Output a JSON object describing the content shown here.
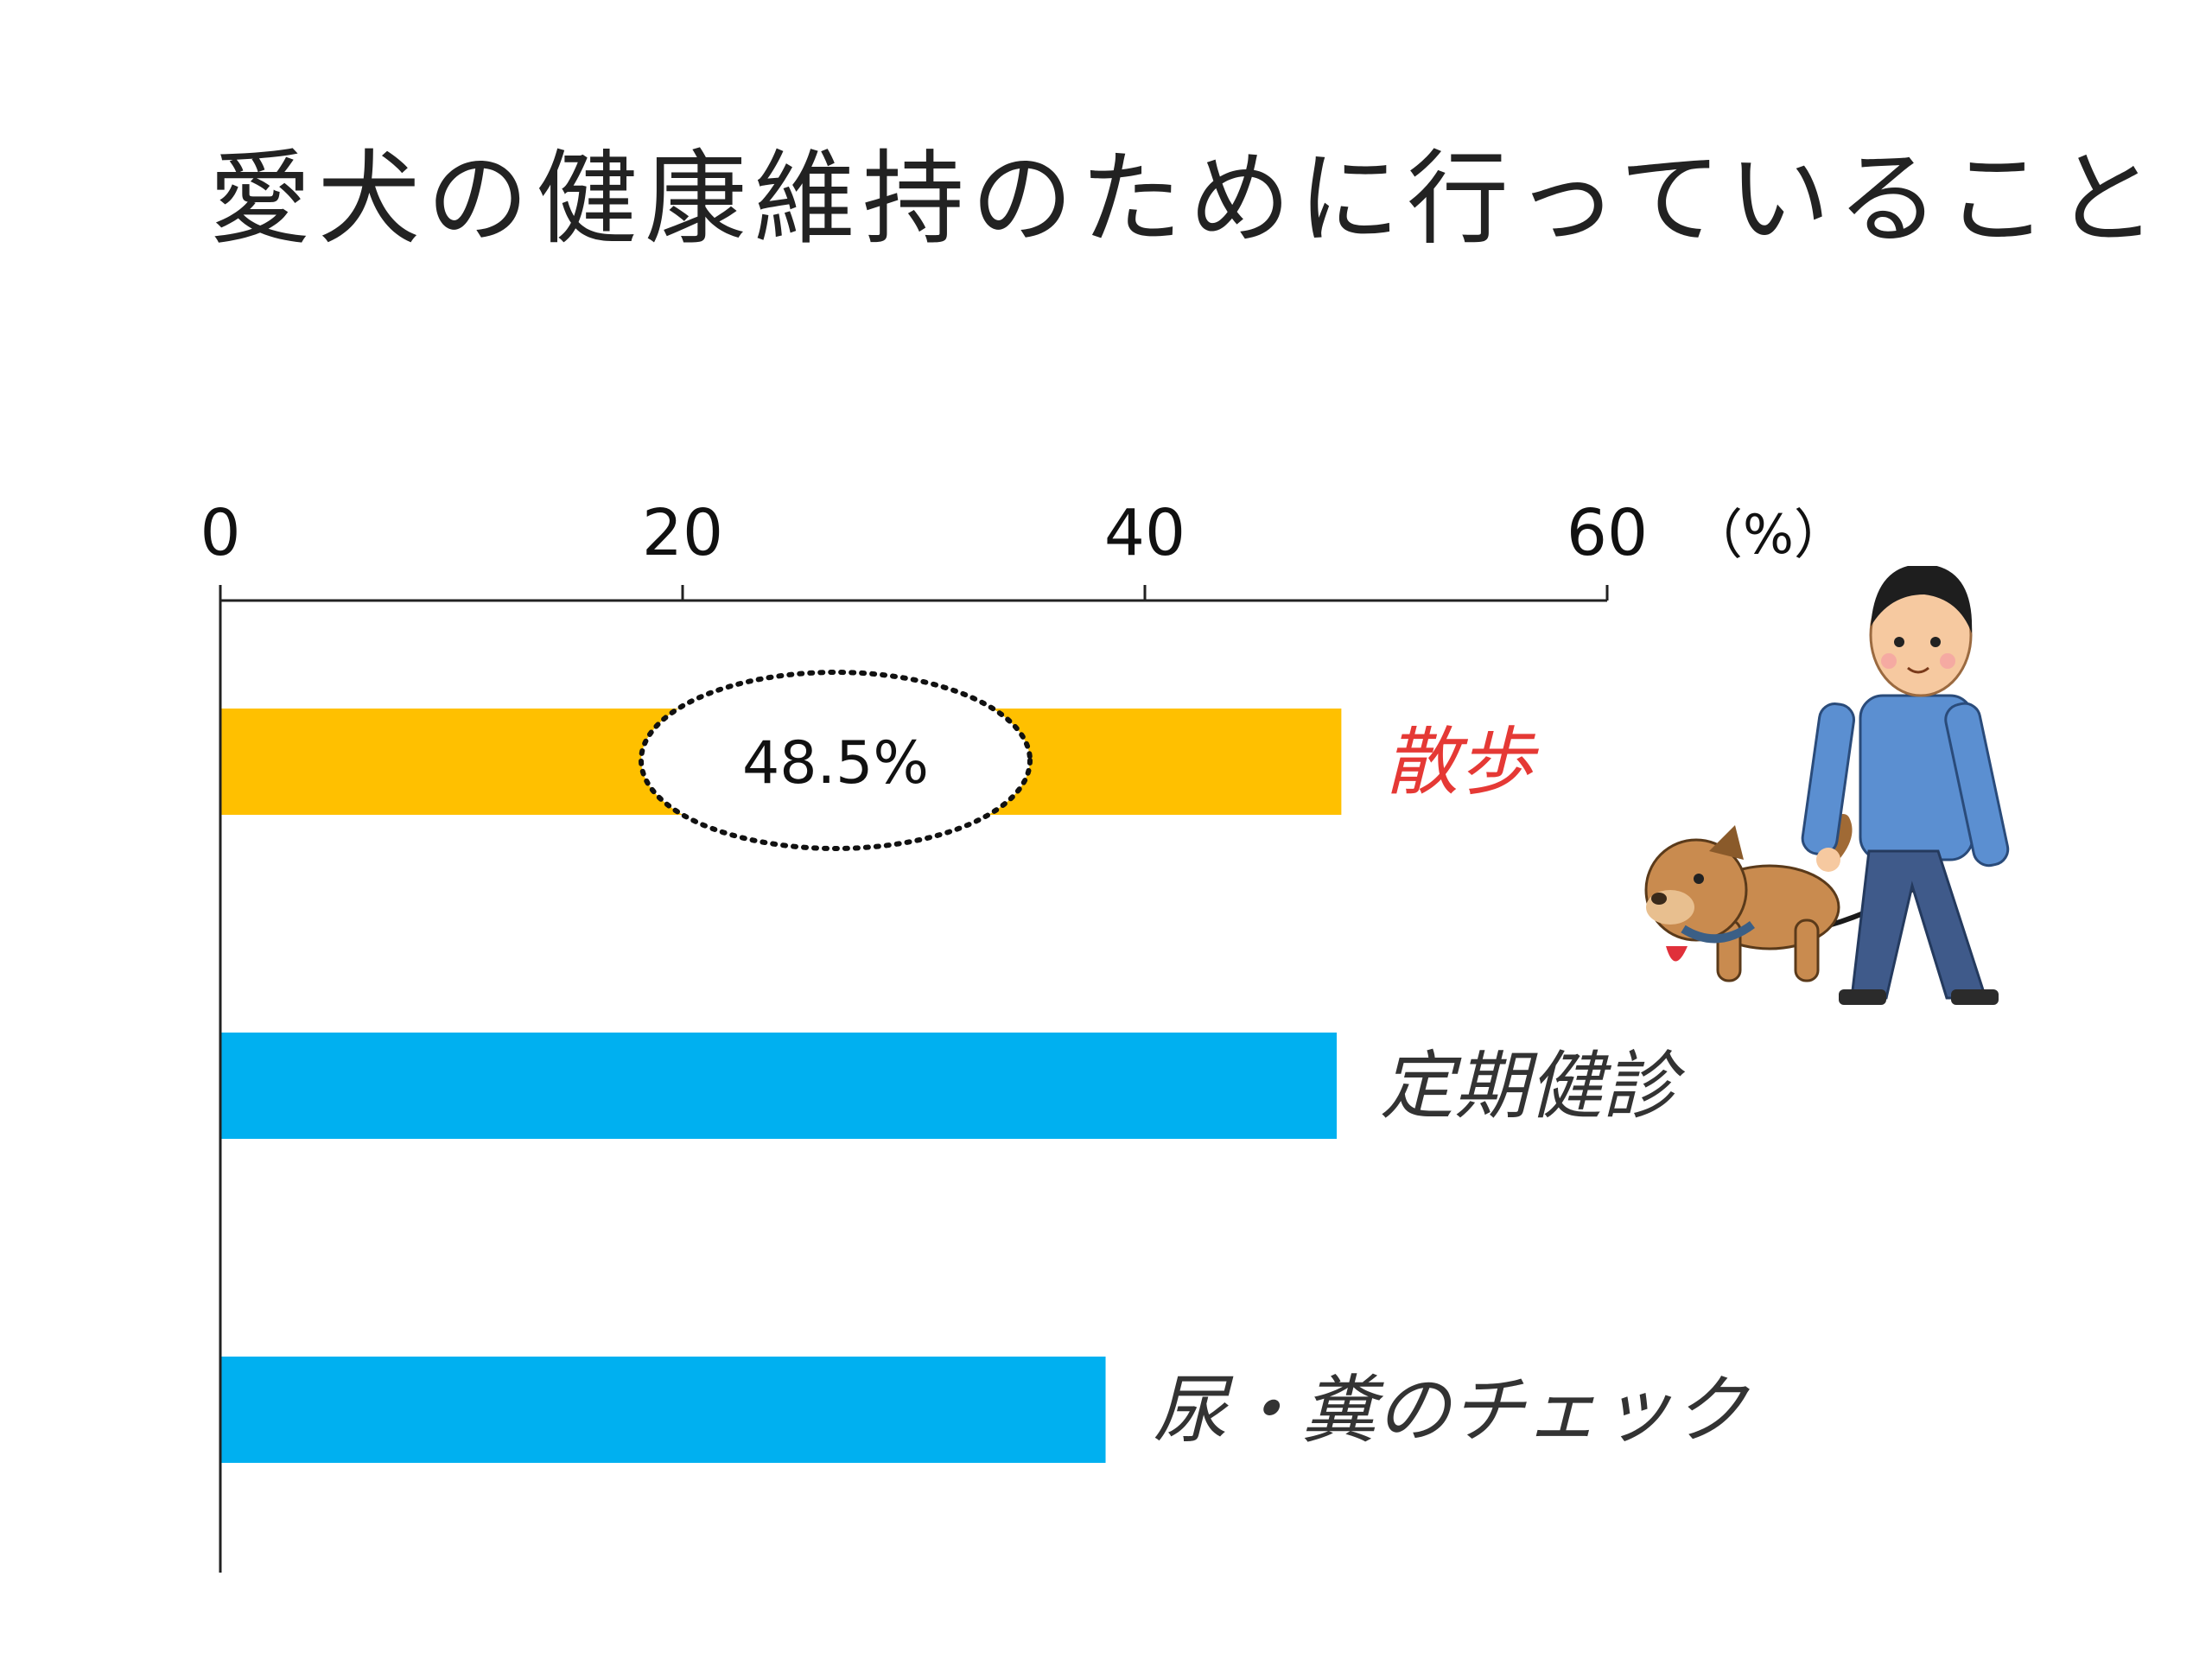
{
  "chart_data": {
    "type": "bar",
    "orientation": "horizontal",
    "title": "愛犬の健康維持のために行っていること",
    "unit_label": "（%）",
    "xlim": [
      0,
      60
    ],
    "ticks": [
      "0",
      "20",
      "40",
      "60"
    ],
    "tick_values": [
      0,
      20,
      40,
      60
    ],
    "axis_position": "top",
    "grid": false,
    "legend": "none",
    "categories": [
      "散歩",
      "定期健診",
      "尿・糞のチェック"
    ],
    "values": [
      48.5,
      48.3,
      38.3
    ],
    "bar_colors": [
      "#FFC000",
      "#00B0F0",
      "#00B0F0"
    ],
    "label_colors": [
      "#E53935",
      "#333333",
      "#333333"
    ],
    "annotation": {
      "text": "48.5%",
      "category": "散歩",
      "style": "dotted-ellipse"
    }
  },
  "illustration": {
    "icon": "man-walking-dog-icon"
  }
}
